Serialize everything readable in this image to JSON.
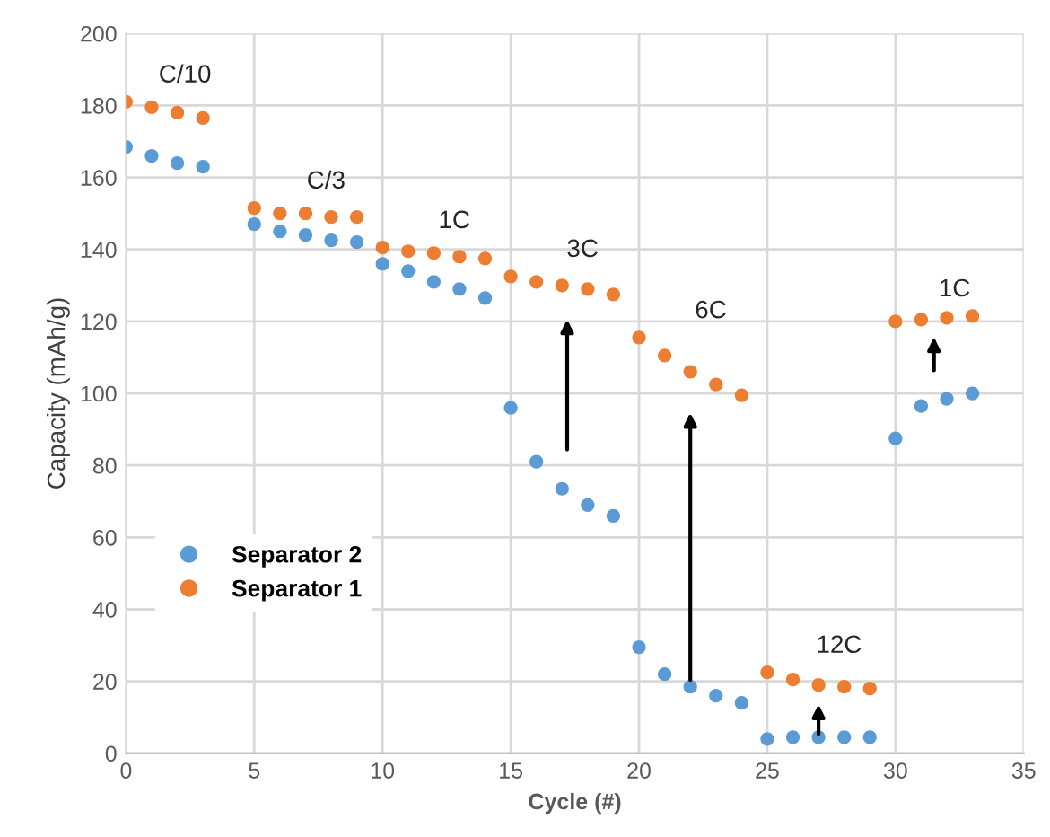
{
  "chart_data": {
    "type": "scatter",
    "xlabel": "Cycle (#)",
    "ylabel": "Capacity (mAh/g)",
    "x": [
      0,
      1,
      2,
      3,
      5,
      6,
      7,
      8,
      9,
      10,
      11,
      12,
      13,
      14,
      15,
      16,
      17,
      18,
      19,
      20,
      21,
      22,
      23,
      24,
      25,
      26,
      27,
      28,
      29,
      30,
      31,
      32,
      33
    ],
    "series": [
      {
        "name": "Separator 2",
        "color": "#5b9bd5",
        "values": [
          168.5,
          166,
          164,
          163,
          147,
          145,
          144,
          142.5,
          142,
          136,
          134,
          131,
          129,
          126.5,
          96,
          81,
          73.5,
          69,
          66,
          29.5,
          22,
          18.5,
          16,
          14,
          4,
          4.5,
          4.5,
          4.5,
          4.5,
          87.5,
          96.5,
          98.5,
          100
        ]
      },
      {
        "name": "Separator 1",
        "color": "#ed7d31",
        "values": [
          181,
          179.5,
          178,
          176.5,
          151.5,
          150,
          150,
          149,
          149,
          140.5,
          139.5,
          139,
          138,
          137.5,
          132.5,
          131,
          130,
          129,
          127.5,
          115.5,
          110.5,
          106,
          102.5,
          99.5,
          22.5,
          20.5,
          19,
          18.5,
          18,
          120,
          120.5,
          121,
          121.5
        ]
      }
    ],
    "xlim": [
      0,
      35
    ],
    "xticks": [
      0,
      5,
      10,
      15,
      20,
      25,
      30,
      35
    ],
    "ylim": [
      0,
      200
    ],
    "yticks": [
      0,
      20,
      40,
      60,
      80,
      100,
      120,
      140,
      160,
      180,
      200
    ],
    "grid": true,
    "legend": "left",
    "marker": "circle",
    "annotations": [
      "C/10",
      "C/3",
      "1C",
      "3C",
      "6C",
      "12C",
      "1C"
    ]
  }
}
